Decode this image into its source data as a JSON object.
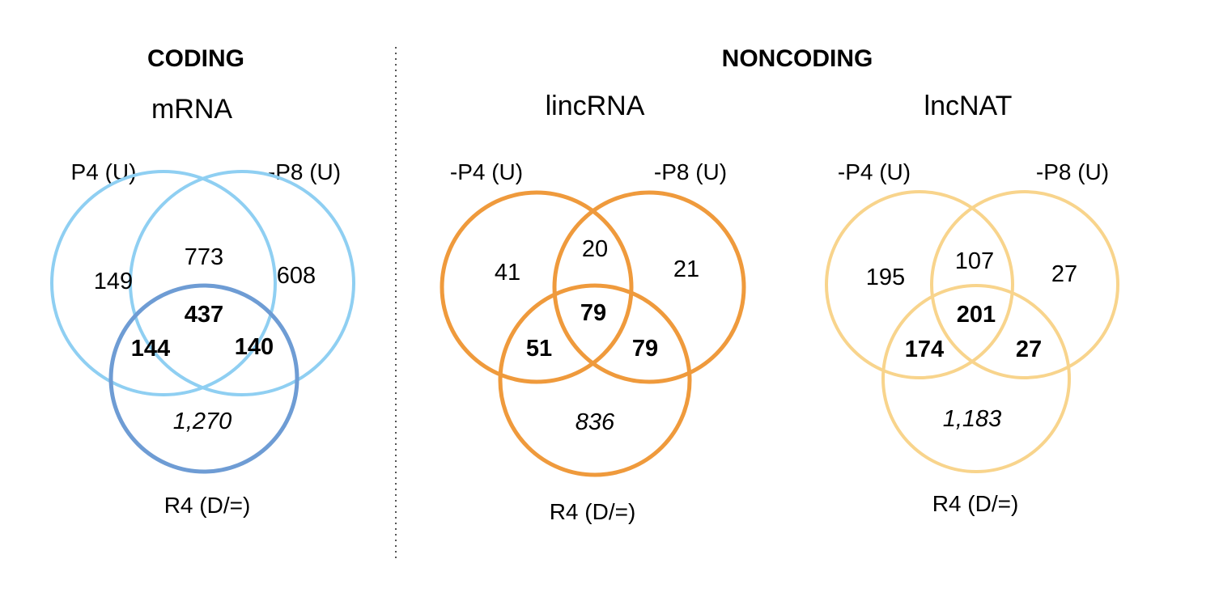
{
  "sections": [
    {
      "id": "coding",
      "title": "CODING"
    },
    {
      "id": "noncoding",
      "title": "NONCODING"
    }
  ],
  "venns": [
    {
      "id": "mrna",
      "title": "mRNA",
      "colors": {
        "a": "#8FCFF2",
        "b": "#8FCFF2",
        "c": "#6E9CD4"
      },
      "sets": {
        "a": "P4 (U)",
        "b": "-P8 (U)",
        "c": "R4 (D/=)"
      },
      "regions": {
        "a_only": "149",
        "b_only": "608",
        "ab": "773",
        "abc": "437",
        "ac": "144",
        "bc": "140",
        "c_only": "1,270"
      }
    },
    {
      "id": "lincrna",
      "title": "lincRNA",
      "colors": {
        "a": "#EF9A3C",
        "b": "#EF9A3C",
        "c": "#EF9A3C"
      },
      "sets": {
        "a": "-P4 (U)",
        "b": "-P8 (U)",
        "c": "R4 (D/=)"
      },
      "regions": {
        "a_only": "41",
        "b_only": "21",
        "ab": "20",
        "abc": "79",
        "ac": "51",
        "bc": "79",
        "c_only": "836"
      }
    },
    {
      "id": "lncnat",
      "title": "lncNAT",
      "colors": {
        "a": "#F8D48C",
        "b": "#F8D48C",
        "c": "#F8D48C"
      },
      "sets": {
        "a": "-P4 (U)",
        "b": "-P8 (U)",
        "c": "R4 (D/=)"
      },
      "regions": {
        "a_only": "195",
        "b_only": "27",
        "ab": "107",
        "abc": "201",
        "ac": "174",
        "bc": "27",
        "c_only": "1,183"
      }
    }
  ]
}
